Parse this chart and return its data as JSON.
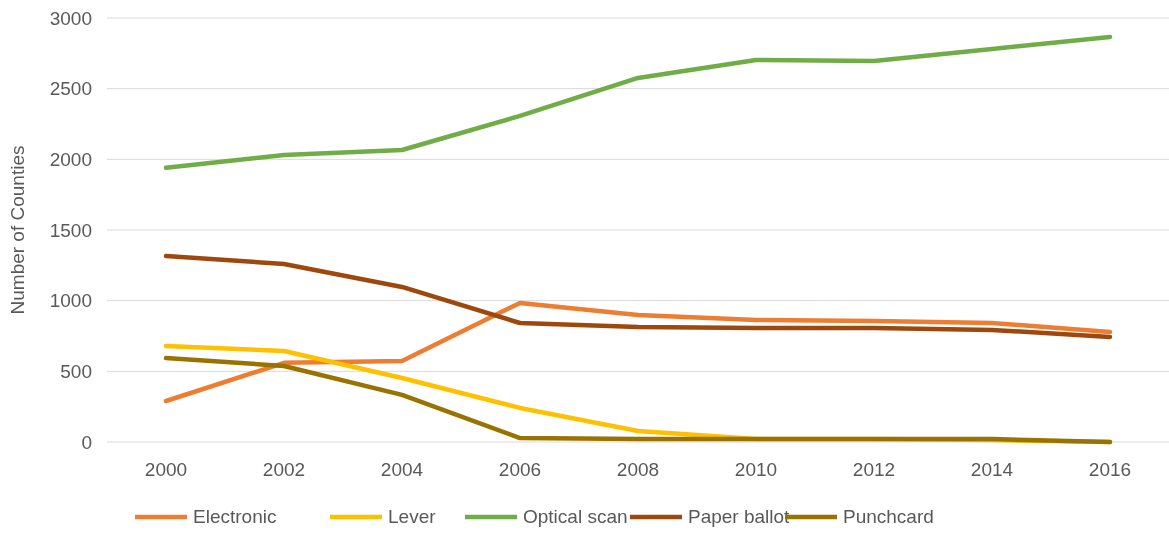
{
  "chart_data": {
    "type": "line",
    "ylabel": "Number of Counties",
    "categories": [
      "2000",
      "2002",
      "2004",
      "2006",
      "2008",
      "2010",
      "2012",
      "2014",
      "2016"
    ],
    "series": [
      {
        "name": "Electronic",
        "color": "#ed7d31",
        "values": [
          290,
          560,
          573,
          984,
          899,
          863,
          856,
          842,
          778
        ]
      },
      {
        "name": "Lever",
        "color": "#ffc000",
        "values": [
          679,
          644,
          453,
          241,
          78,
          21,
          21,
          14,
          0
        ]
      },
      {
        "name": "Optical scan",
        "color": "#70ad47",
        "values": [
          1940,
          2031,
          2066,
          2307,
          2576,
          2703,
          2696,
          2781,
          2866
        ]
      },
      {
        "name": "Paper ballot",
        "color": "#9e480e",
        "values": [
          1316,
          1260,
          1097,
          842,
          814,
          807,
          807,
          793,
          743
        ]
      },
      {
        "name": "Punchcard",
        "color": "#997300",
        "values": [
          594,
          538,
          333,
          28,
          21,
          21,
          21,
          21,
          0
        ]
      }
    ],
    "ylim": [
      0,
      3000
    ],
    "yticks": [
      0,
      500,
      1000,
      1500,
      2000,
      2500,
      3000
    ],
    "grid": "y",
    "legend": "bottom",
    "marker": "none",
    "line_style": "solid"
  }
}
